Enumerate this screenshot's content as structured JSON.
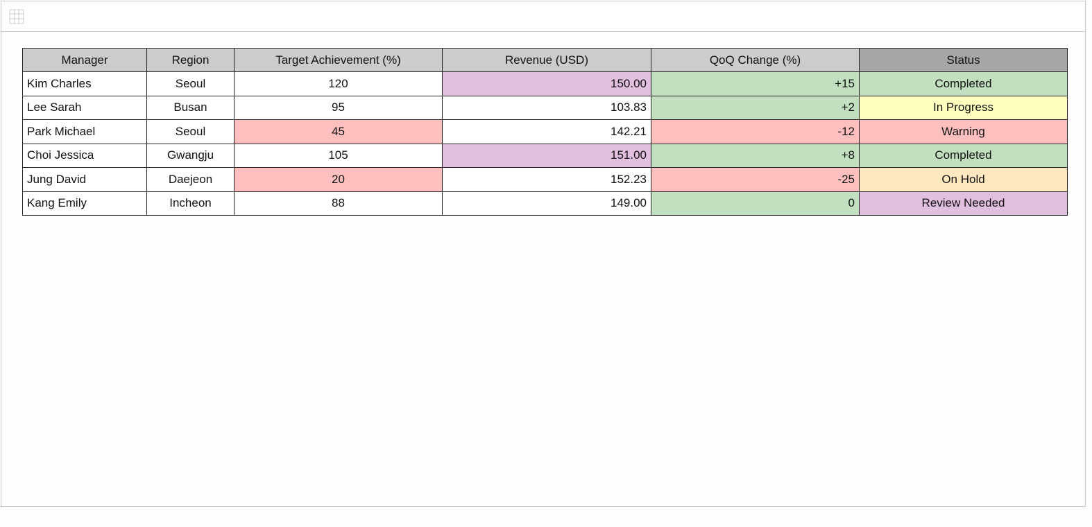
{
  "table": {
    "header": [
      "Manager",
      "Region",
      "Target Achievement (%)",
      "Revenue (USD)",
      "QoQ Change (%)",
      "Status"
    ],
    "rows": [
      [
        "Kim Charles",
        "Seoul",
        "120",
        "150.00",
        "+15",
        "Completed"
      ],
      [
        "Lee Sarah",
        "Busan",
        "95",
        "103.83",
        "+2",
        "In Progress"
      ],
      [
        "Park Michael",
        "Seoul",
        "45",
        "142.21",
        "-12",
        "Warning"
      ],
      [
        "Choi Jessica",
        "Gwangju",
        "105",
        "151.00",
        "+8",
        "Completed"
      ],
      [
        "Jung David",
        "Daejeon",
        "20",
        "152.23",
        "-25",
        "On Hold"
      ],
      [
        "Kang Emily",
        "Incheon",
        "88",
        "149.00",
        "0",
        "Review Needed"
      ]
    ]
  }
}
